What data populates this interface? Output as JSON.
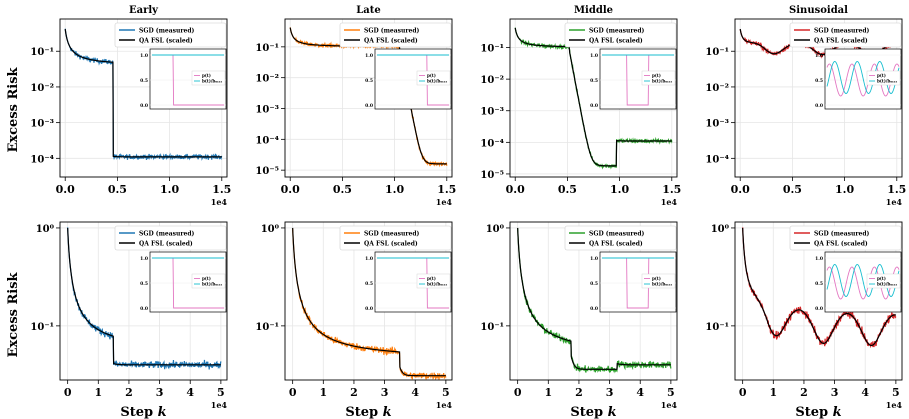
{
  "figure": {
    "ylabel": "Excess Risk",
    "xlabel": "Step",
    "xlabel_var": "k",
    "offset_text": "1e4"
  },
  "chart_data": [
    {
      "type": "line",
      "title": "Early",
      "row": 0,
      "col": 0,
      "yscale": "log",
      "ylim": [
        3e-05,
        0.8
      ],
      "xlim": [
        -0.05,
        1.55
      ],
      "xticks": [
        0,
        0.5,
        1.0,
        1.5
      ],
      "xticklabels": [
        "0.0",
        "0.5",
        "1.0",
        "1.5"
      ],
      "xoffset": "1e4",
      "yticks": [
        0.1,
        0.01,
        0.001,
        0.0001
      ],
      "yticklabels": [
        "10⁻¹",
        "10⁻²",
        "10⁻³",
        "10⁻⁴"
      ],
      "series": [
        {
          "name": "SGD (measured)",
          "color": "#1f77b4"
        },
        {
          "name": "QA FSL (scaled)",
          "color": "#000000"
        }
      ],
      "profile": {
        "x0": 0,
        "x1": 1.5,
        "a": 0.42,
        "segs": [
          [
            0.46,
            "s",
            0.00011
          ]
        ],
        "noise": 0.15,
        "pre": 0.04
      },
      "inset": {
        "legend": [
          "p(t)",
          "b(t)/bₘₐₓ"
        ],
        "yticklabels": [
          "1.0",
          "0.5",
          "0.0"
        ],
        "p_shape": "step_down",
        "p_step": 0.3,
        "b_shape": "const"
      }
    },
    {
      "type": "line",
      "title": "Late",
      "row": 0,
      "col": 1,
      "yscale": "log",
      "ylim": [
        6e-06,
        0.8
      ],
      "xlim": [
        -0.05,
        1.55
      ],
      "xticks": [
        0,
        0.5,
        1.0,
        1.5
      ],
      "xticklabels": [
        "0.0",
        "0.5",
        "1.0",
        "1.5"
      ],
      "xoffset": "1e4",
      "yticks": [
        0.1,
        0.01,
        0.001,
        0.0001,
        1e-05
      ],
      "yticklabels": [
        "10⁻¹",
        "10⁻²",
        "10⁻³",
        "10⁻⁴",
        "10⁻⁵"
      ],
      "series": [
        {
          "name": "SGD (measured)",
          "color": "#ff7f0e"
        },
        {
          "name": "QA FSL (scaled)",
          "color": "#000000"
        }
      ],
      "profile": {
        "x0": 0,
        "x1": 1.5,
        "a": 0.42,
        "segs": [
          [
            1.05,
            "d",
            1.6e-05
          ]
        ],
        "noise": 0.14,
        "pre": 0.1
      },
      "inset": {
        "legend": [
          "p(t)",
          "b(t)/bₘₐₓ"
        ],
        "yticklabels": [
          "1.0",
          "0.5",
          "0.0"
        ],
        "p_shape": "step_down",
        "p_step": 0.7,
        "b_shape": "const"
      }
    },
    {
      "type": "line",
      "title": "Middle",
      "row": 0,
      "col": 2,
      "yscale": "log",
      "ylim": [
        8e-06,
        0.8
      ],
      "xlim": [
        -0.05,
        1.55
      ],
      "xticks": [
        0,
        0.5,
        1.0,
        1.5
      ],
      "xticklabels": [
        "0.0",
        "0.5",
        "1.0",
        "1.5"
      ],
      "xoffset": "1e4",
      "yticks": [
        0.1,
        0.01,
        0.001,
        0.0001,
        1e-05
      ],
      "yticklabels": [
        "10⁻¹",
        "10⁻²",
        "10⁻³",
        "10⁻⁴",
        "10⁻⁵"
      ],
      "series": [
        {
          "name": "SGD (measured)",
          "color": "#2ca02c"
        },
        {
          "name": "QA FSL (scaled)",
          "color": "#000000"
        }
      ],
      "profile": {
        "x0": 0,
        "x1": 1.5,
        "a": 0.42,
        "segs": [
          [
            0.52,
            "d",
            1.8e-05
          ],
          [
            0.97,
            "s",
            0.00011
          ]
        ],
        "noise": 0.14,
        "pre": 0.1
      },
      "inset": {
        "legend": [
          "p(t)",
          "b(t)/bₘₐₓ"
        ],
        "yticklabels": [
          "1.0",
          "0.5",
          "0.0"
        ],
        "p_shape": "pulse",
        "p_step": 0.35,
        "p_step2": 0.65,
        "b_shape": "const"
      }
    },
    {
      "type": "line",
      "title": "Sinusoidal",
      "row": 0,
      "col": 3,
      "yscale": "log",
      "ylim": [
        3e-05,
        0.8
      ],
      "xlim": [
        -0.05,
        1.55
      ],
      "xticks": [
        0,
        0.5,
        1.0,
        1.5
      ],
      "xticklabels": [
        "0.0",
        "0.5",
        "1.0",
        "1.5"
      ],
      "xoffset": "1e4",
      "yticks": [
        0.1,
        0.01,
        0.001,
        0.0001
      ],
      "yticklabels": [
        "10⁻¹",
        "10⁻²",
        "10⁻³",
        "10⁻⁴"
      ],
      "series": [
        {
          "name": "SGD (measured)",
          "color": "#d62728"
        },
        {
          "name": "QA FSL (scaled)",
          "color": "#000000"
        }
      ],
      "profile": {
        "x0": 0,
        "x1": 1.5,
        "a": 0.42,
        "segs": [],
        "noise": 0.15,
        "pre": 0.12,
        "sin": true
      },
      "inset": {
        "legend": [
          "p(t)",
          "b(t)/bₘₐₓ"
        ],
        "yticklabels": [
          "1.0",
          "0.5",
          "0.0"
        ],
        "p_shape": "sin",
        "b_shape": "sin"
      }
    },
    {
      "type": "line",
      "title": "",
      "row": 1,
      "col": 0,
      "yscale": "log",
      "ylim": [
        0.028,
        1.15
      ],
      "xlim": [
        -0.25,
        5.2
      ],
      "xticks": [
        0,
        1,
        2,
        3,
        4,
        5
      ],
      "xticklabels": [
        "0",
        "1",
        "2",
        "3",
        "4",
        "5"
      ],
      "xoffset": "1e4",
      "yticks": [
        1,
        0.1
      ],
      "yticklabels": [
        "10⁰",
        "10⁻¹"
      ],
      "series": [
        {
          "name": "SGD (measured)",
          "color": "#1f77b4"
        },
        {
          "name": "QA FSL (scaled)",
          "color": "#000000"
        }
      ],
      "profile": {
        "x0": 0,
        "x1": 5,
        "a": 1.0,
        "segs": [
          [
            1.5,
            "s",
            0.04
          ]
        ],
        "noise": 0.08,
        "pre": 0.055
      },
      "inset": {
        "legend": [
          "p(t)",
          "b(t)/bₘₐₓ"
        ],
        "yticklabels": [
          "1.0",
          "0.5",
          "0.0"
        ],
        "p_shape": "step_down",
        "p_step": 0.3,
        "b_shape": "const"
      }
    },
    {
      "type": "line",
      "title": "",
      "row": 1,
      "col": 1,
      "yscale": "log",
      "ylim": [
        0.028,
        1.15
      ],
      "xlim": [
        -0.25,
        5.2
      ],
      "xticks": [
        0,
        1,
        2,
        3,
        4,
        5
      ],
      "xticklabels": [
        "0",
        "1",
        "2",
        "3",
        "4",
        "5"
      ],
      "xoffset": "1e4",
      "yticks": [
        1,
        0.1
      ],
      "yticklabels": [
        "10⁰",
        "10⁻¹"
      ],
      "series": [
        {
          "name": "SGD (measured)",
          "color": "#ff7f0e"
        },
        {
          "name": "QA FSL (scaled)",
          "color": "#000000"
        }
      ],
      "profile": {
        "x0": 0,
        "x1": 5,
        "a": 1.0,
        "segs": [
          [
            3.5,
            "d",
            0.031
          ]
        ],
        "noise": 0.08,
        "pre": 0.045
      },
      "inset": {
        "legend": [
          "p(t)",
          "b(t)/bₘₐₓ"
        ],
        "yticklabels": [
          "1.0",
          "0.5",
          "0.0"
        ],
        "p_shape": "step_down",
        "p_step": 0.7,
        "b_shape": "const"
      }
    },
    {
      "type": "line",
      "title": "",
      "row": 1,
      "col": 2,
      "yscale": "log",
      "ylim": [
        0.028,
        1.15
      ],
      "xlim": [
        -0.25,
        5.2
      ],
      "xticks": [
        0,
        1,
        2,
        3,
        4,
        5
      ],
      "xticklabels": [
        "0",
        "1",
        "2",
        "3",
        "4",
        "5"
      ],
      "xoffset": "1e4",
      "yticks": [
        1,
        0.1
      ],
      "yticklabels": [
        "10⁰",
        "10⁻¹"
      ],
      "series": [
        {
          "name": "SGD (measured)",
          "color": "#2ca02c"
        },
        {
          "name": "QA FSL (scaled)",
          "color": "#000000"
        }
      ],
      "profile": {
        "x0": 0,
        "x1": 5,
        "a": 1.0,
        "segs": [
          [
            1.75,
            "d",
            0.036
          ],
          [
            3.25,
            "s",
            0.04
          ]
        ],
        "noise": 0.08,
        "pre": 0.05
      },
      "inset": {
        "legend": [
          "p(t)",
          "b(t)/bₘₐₓ"
        ],
        "yticklabels": [
          "1.0",
          "0.5",
          "0.0"
        ],
        "p_shape": "pulse",
        "p_step": 0.35,
        "p_step2": 0.65,
        "b_shape": "const"
      }
    },
    {
      "type": "line",
      "title": "",
      "row": 1,
      "col": 3,
      "yscale": "log",
      "ylim": [
        0.028,
        1.15
      ],
      "xlim": [
        -0.25,
        5.2
      ],
      "xticks": [
        0,
        1,
        2,
        3,
        4,
        5
      ],
      "xticklabels": [
        "0",
        "1",
        "2",
        "3",
        "4",
        "5"
      ],
      "xoffset": "1e4",
      "yticks": [
        1,
        0.1
      ],
      "yticklabels": [
        "10⁰",
        "10⁻¹"
      ],
      "series": [
        {
          "name": "SGD (measured)",
          "color": "#d62728"
        },
        {
          "name": "QA FSL (scaled)",
          "color": "#000000"
        }
      ],
      "profile": {
        "x0": 0,
        "x1": 5,
        "a": 1.0,
        "segs": [],
        "noise": 0.09,
        "pre": 0.09,
        "sin": true
      },
      "inset": {
        "legend": [
          "p(t)",
          "b(t)/bₘₐₓ"
        ],
        "yticklabels": [
          "1.0",
          "0.5",
          "0.0"
        ],
        "p_shape": "sin",
        "b_shape": "sin"
      }
    }
  ]
}
